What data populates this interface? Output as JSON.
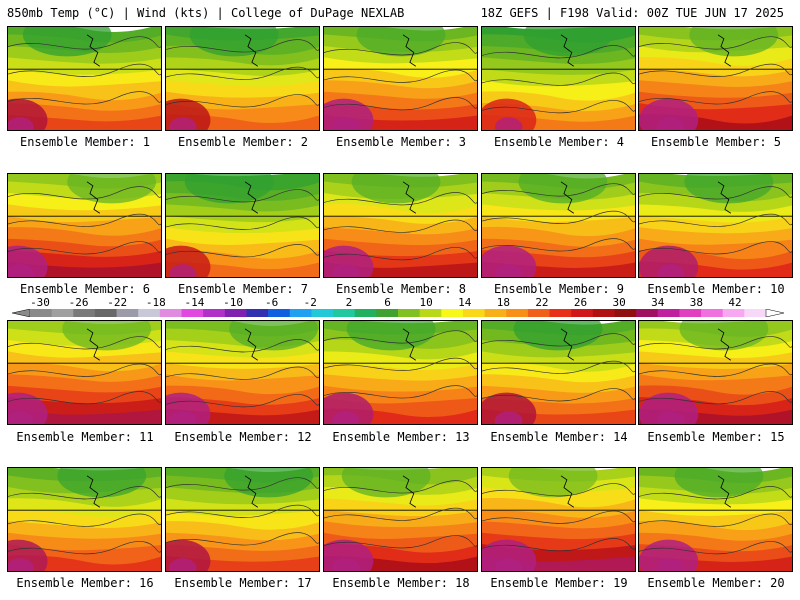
{
  "header": {
    "left": "850mb Temp (°C) | Wind (kts) | College of DuPage NEXLAB",
    "right": "18Z GEFS | F198 Valid: 00Z TUE JUN 17 2025"
  },
  "panels": [
    {
      "label": "Ensemble Member: 1",
      "warmth": 0.55
    },
    {
      "label": "Ensemble Member: 2",
      "warmth": 0.5
    },
    {
      "label": "Ensemble Member: 3",
      "warmth": 0.62
    },
    {
      "label": "Ensemble Member: 4",
      "warmth": 0.45
    },
    {
      "label": "Ensemble Member: 5",
      "warmth": 0.68
    },
    {
      "label": "Ensemble Member: 6",
      "warmth": 0.7
    },
    {
      "label": "Ensemble Member: 7",
      "warmth": 0.48
    },
    {
      "label": "Ensemble Member: 8",
      "warmth": 0.66
    },
    {
      "label": "Ensemble Member: 9",
      "warmth": 0.64
    },
    {
      "label": "Ensemble Member: 10",
      "warmth": 0.6
    },
    {
      "label": "Ensemble Member: 11",
      "warmth": 0.72
    },
    {
      "label": "Ensemble Member: 12",
      "warmth": 0.65
    },
    {
      "label": "Ensemble Member: 13",
      "warmth": 0.6
    },
    {
      "label": "Ensemble Member: 14",
      "warmth": 0.55
    },
    {
      "label": "Ensemble Member: 15",
      "warmth": 0.7
    },
    {
      "label": "Ensemble Member: 16",
      "warmth": 0.58
    },
    {
      "label": "Ensemble Member: 17",
      "warmth": 0.56
    },
    {
      "label": "Ensemble Member: 18",
      "warmth": 0.68
    },
    {
      "label": "Ensemble Member: 19",
      "warmth": 0.74
    },
    {
      "label": "Ensemble Member: 20",
      "warmth": 0.62
    }
  ],
  "colorbar": {
    "ticks": [
      "-30",
      "-26",
      "-22",
      "-18",
      "-14",
      "-10",
      "-6",
      "-2",
      "2",
      "6",
      "10",
      "14",
      "18",
      "22",
      "26",
      "30",
      "34",
      "38",
      "42"
    ],
    "colors": [
      "#8a8a8a",
      "#a0a0a0",
      "#7a7a7a",
      "#686868",
      "#9a9aa8",
      "#c8c8d8",
      "#e08ae0",
      "#e048e0",
      "#b030c8",
      "#8020b0",
      "#3030b0",
      "#1060e0",
      "#20a0f0",
      "#20c8d8",
      "#20c8a0",
      "#20b060",
      "#40a030",
      "#80c020",
      "#b8d818",
      "#f8f818",
      "#f8d818",
      "#f8b018",
      "#f89018",
      "#f06018",
      "#e83018",
      "#d01818",
      "#b01010",
      "#901010",
      "#a01060",
      "#c020a0",
      "#e040c0",
      "#f070e0",
      "#f8a8f0",
      "#f8d8f8"
    ]
  }
}
